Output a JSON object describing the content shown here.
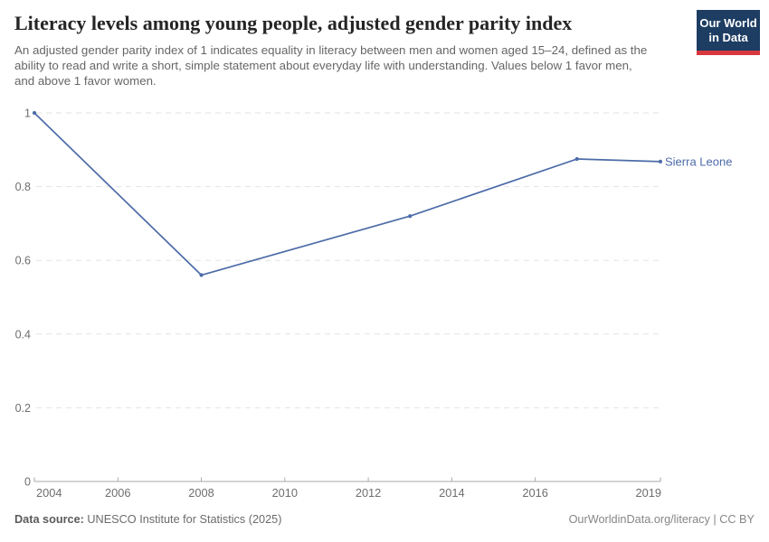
{
  "header": {
    "title": "Literacy levels among young people, adjusted gender parity index",
    "subtitle": "An adjusted gender parity index of 1 indicates equality in literacy between men and women aged 15–24, defined as the ability to read and write a short, simple statement about everyday life with understanding. Values below 1 favor men, and above 1 favor women.",
    "logo": {
      "line1": "Our World",
      "line2": "in Data",
      "bg_color": "#1d3d63",
      "accent_color": "#d7383e"
    }
  },
  "chart_data": {
    "type": "line",
    "title": "Literacy levels among young people, adjusted gender parity index",
    "series": [
      {
        "name": "Sierra Leone",
        "color": "#4c6ba8",
        "x": [
          2004,
          2008,
          2013,
          2017,
          2019
        ],
        "values": [
          1,
          0.56,
          0.72,
          0.875,
          0.868
        ]
      }
    ],
    "x_ticks": [
      2004,
      2006,
      2008,
      2010,
      2012,
      2014,
      2016,
      2019
    ],
    "y_ticks": [
      0,
      0.2,
      0.4,
      0.6,
      0.8,
      1
    ],
    "xlim": [
      2004,
      2019
    ],
    "ylim": [
      0,
      1
    ],
    "xlabel": "",
    "ylabel": "",
    "grid": "horizontal-dashed",
    "legend_position": "end-of-line-label",
    "end_label": "Sierra Leone",
    "grid_color": "#e2e2e2",
    "axis_color": "#aaaaaa",
    "tick_label_color": "#6e6e6e"
  },
  "footer": {
    "source_label": "Data source:",
    "source_text": " UNESCO Institute for Statistics (2025)",
    "right_text": "OurWorldinData.org/literacy | CC BY"
  }
}
